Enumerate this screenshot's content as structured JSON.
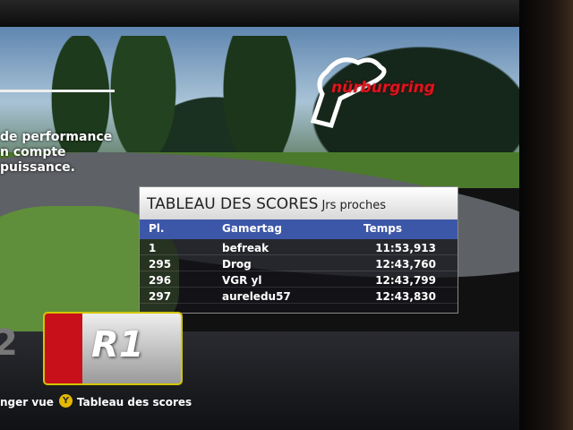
{
  "track": {
    "name": "nürburgring"
  },
  "description": {
    "lines": [
      "de performance",
      "n compte",
      "puissance."
    ]
  },
  "leaderboard": {
    "title": "TABLEAU DES SCORES",
    "filter": "Jrs proches",
    "columns": [
      "Pl.",
      "Gamertag",
      "Temps"
    ],
    "rows": [
      {
        "place": "1",
        "gamertag": "befreak",
        "time": "11:53,913"
      },
      {
        "place": "295",
        "gamertag": "Drog",
        "time": "12:43,760"
      },
      {
        "place": "296",
        "gamertag": "VGR yl",
        "time": "12:43,799"
      },
      {
        "place": "297",
        "gamertag": "aureledu57",
        "time": "12:43,830"
      }
    ],
    "header_color": "#3d57a8"
  },
  "class_card": {
    "previous": "2",
    "current": "R1",
    "accent": "#c8101a"
  },
  "footer": {
    "change_view": "nger vue",
    "y_button": "Y",
    "scoreboard": "Tableau des scores"
  }
}
